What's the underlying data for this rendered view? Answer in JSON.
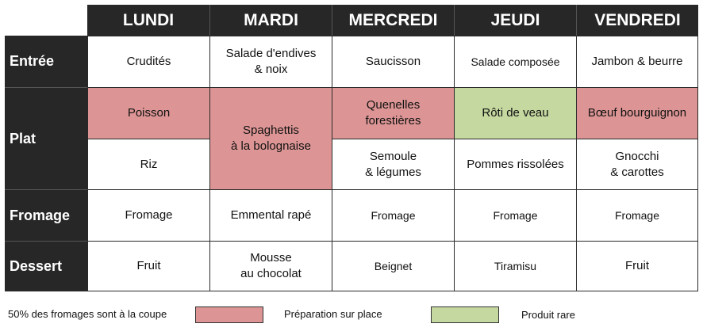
{
  "days": [
    "LUNDI",
    "MARDI",
    "MERCREDI",
    "JEUDI",
    "VENDREDI"
  ],
  "rows": {
    "entree": "Entrée",
    "plat": "Plat",
    "fromage": "Fromage",
    "dessert": "Dessert"
  },
  "menu": {
    "entree": [
      "Crudités",
      "Salade d'endives\n& noix",
      "Saucisson",
      "Salade composée",
      "Jambon & beurre"
    ],
    "plat_main": [
      "Poisson",
      "Spaghettis\nà la bolognaise",
      "Quenelles\nforestières",
      "Rôti de veau",
      "Bœuf bourguignon"
    ],
    "plat_side": [
      "Riz",
      "Semoule\n& légumes",
      "Pommes rissolées",
      "Gnocchi\n& carottes"
    ],
    "fromage": [
      "Fromage",
      "Emmental rapé",
      "Fromage",
      "Fromage",
      "Fromage"
    ],
    "dessert": [
      "Fruit",
      "Mousse\nau chocolat",
      "Beignet",
      "Tiramisu",
      "Fruit"
    ]
  },
  "legend": {
    "note": "50% des fromages sont à la coupe",
    "red_label": "Préparation sur place",
    "green_label": "Produit rare"
  },
  "colors": {
    "header": "#272727",
    "preparation_sur_place": "#dc9594",
    "produit_rare": "#c5d8a0"
  }
}
